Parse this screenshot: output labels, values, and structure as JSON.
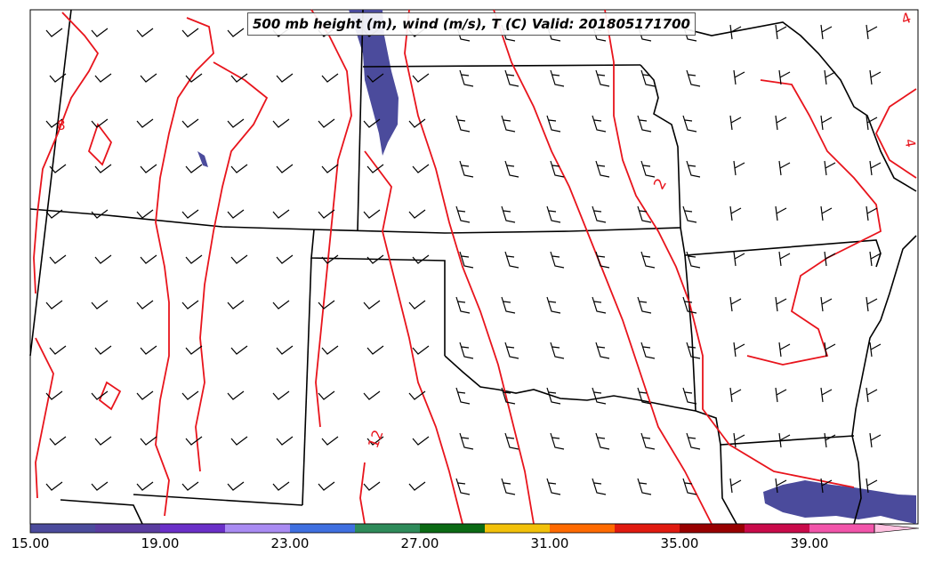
{
  "map": {
    "title": "500 mb height (m), wind (m/s), T (C) Valid: 201805171700",
    "contour_labels": [
      "4",
      "8",
      "2",
      "12",
      "4"
    ],
    "contour_color": "#e8141c",
    "fill_color": "#4b4b9c",
    "border_color": "#000000",
    "colorbar": {
      "ticks": [
        "15.00",
        "19.00",
        "23.00",
        "27.00",
        "31.00",
        "35.00",
        "39.00"
      ],
      "colors": [
        "#4b4b9c",
        "#5a3ca0",
        "#6a2fc8",
        "#a98bf3",
        "#3f6fe0",
        "#2e8b5a",
        "#0b6a14",
        "#f2c10a",
        "#ff6a00",
        "#e01a10",
        "#980000",
        "#c90a4a",
        "#f255aa",
        "#ffc0e0"
      ]
    }
  }
}
